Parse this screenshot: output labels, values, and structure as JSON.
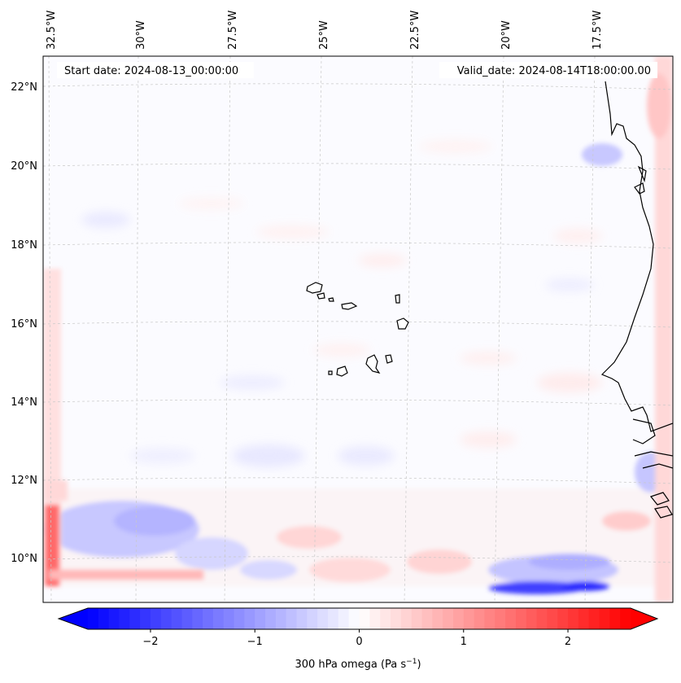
{
  "header": {
    "start_date": "Start date: 2024-08-13_00:00:00",
    "valid_date": "Valid_date: 2024-08-14T18:00:00.00"
  },
  "longitude_labels": [
    "32.5°W",
    "30°W",
    "27.5°W",
    "25°W",
    "22.5°W",
    "20°W",
    "17.5°W"
  ],
  "latitude_labels": [
    "22°N",
    "20°N",
    "18°N",
    "16°N",
    "14°N",
    "12°N",
    "10°N"
  ],
  "colorbar": {
    "ticks": [
      "−2",
      "−1",
      "0",
      "1",
      "2"
    ],
    "tick_values": [
      -2,
      -1,
      0,
      1,
      2
    ],
    "range": [
      -2.6,
      2.6
    ],
    "label": "300 hPa omega (Pa s",
    "label_exp": "−1",
    "label_close": ")",
    "colormap": "bwr",
    "low_color": "#0000ff",
    "mid_color": "#ffffff",
    "high_color": "#ff0000"
  },
  "map": {
    "variable": "300 hPa omega",
    "extent": {
      "lon_min": -32.5,
      "lon_max": -15.5,
      "lat_min": 8.8,
      "lat_max": 22.8
    },
    "coastline_color": "#000000",
    "gridline_color": "#bbbbbb"
  }
}
